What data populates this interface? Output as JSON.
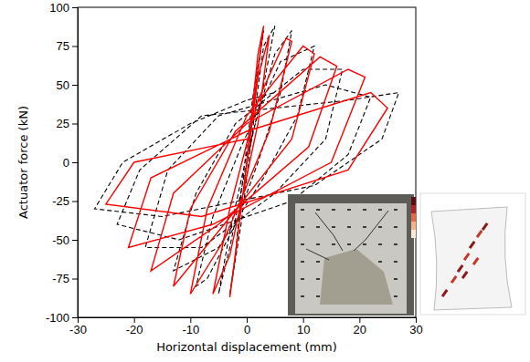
{
  "chart_data": {
    "type": "line",
    "x_label": "Horizontal displacement (mm)",
    "y_label": "Actuator force (kN)",
    "xlim": [
      -30,
      30
    ],
    "xticks": [
      -30,
      -20,
      -10,
      0,
      10,
      20,
      30
    ],
    "ylim": [
      -100,
      100
    ],
    "yticks": [
      -100,
      -75,
      -50,
      -25,
      0,
      25,
      50,
      75,
      100
    ],
    "series": [
      {
        "color": "#000000",
        "line_style": "dashed",
        "x": [
          0,
          2,
          3,
          1,
          -1,
          -2,
          -3,
          -1,
          1,
          3,
          5,
          3,
          0,
          -3,
          -5,
          -3,
          0,
          5,
          8,
          6,
          2,
          -2,
          -7,
          -9,
          -6,
          -1,
          6,
          12,
          9,
          3,
          -5,
          -13,
          -9,
          -2,
          10,
          17,
          14,
          5,
          -8,
          -18,
          -14,
          -5,
          14,
          22,
          18,
          8,
          -12,
          -23,
          -19,
          -8,
          18,
          27,
          24,
          12,
          -15,
          -27,
          -22,
          -10,
          0,
          5
        ],
        "values": [
          0,
          60,
          85,
          40,
          -20,
          -60,
          -85,
          -40,
          20,
          75,
          88,
          50,
          0,
          -55,
          -85,
          -45,
          5,
          70,
          85,
          45,
          0,
          -40,
          -75,
          -80,
          -35,
          10,
          65,
          75,
          30,
          -10,
          -55,
          -70,
          -20,
          25,
          60,
          60,
          15,
          -20,
          -55,
          -55,
          -5,
          30,
          50,
          42,
          5,
          -25,
          -50,
          -40,
          -5,
          30,
          40,
          45,
          15,
          -15,
          -35,
          -30,
          0,
          25,
          40,
          45
        ]
      },
      {
        "color": "#ff0000",
        "line_style": "solid",
        "x": [
          0,
          2,
          3,
          1,
          -2,
          -3,
          -1,
          2,
          4,
          2,
          -3,
          -6,
          -3,
          2,
          7,
          8,
          4,
          -4,
          -10,
          -7,
          0,
          10,
          12,
          8,
          -4,
          -13,
          -10,
          -2,
          13,
          16,
          11,
          -5,
          -17,
          -13,
          0,
          18,
          21,
          15,
          -6,
          -21,
          -17,
          0,
          22,
          25,
          18,
          -8,
          -25,
          -20,
          0
        ],
        "values": [
          0,
          70,
          88,
          30,
          -60,
          -87,
          -30,
          55,
          82,
          25,
          -60,
          -85,
          -30,
          40,
          80,
          78,
          20,
          -50,
          -85,
          -30,
          30,
          75,
          70,
          15,
          -40,
          -80,
          -30,
          20,
          68,
          62,
          10,
          -40,
          -70,
          -20,
          25,
          60,
          55,
          0,
          -40,
          -55,
          -10,
          20,
          45,
          35,
          -5,
          -35,
          -27,
          0,
          15
        ]
      }
    ]
  }
}
